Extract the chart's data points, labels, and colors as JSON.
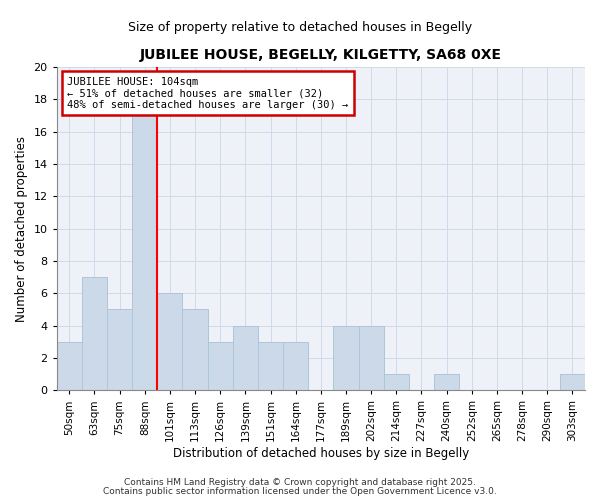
{
  "title": "JUBILEE HOUSE, BEGELLY, KILGETTY, SA68 0XE",
  "subtitle": "Size of property relative to detached houses in Begelly",
  "xlabel": "Distribution of detached houses by size in Begelly",
  "ylabel": "Number of detached properties",
  "categories": [
    "50sqm",
    "63sqm",
    "75sqm",
    "88sqm",
    "101sqm",
    "113sqm",
    "126sqm",
    "139sqm",
    "151sqm",
    "164sqm",
    "177sqm",
    "189sqm",
    "202sqm",
    "214sqm",
    "227sqm",
    "240sqm",
    "252sqm",
    "265sqm",
    "278sqm",
    "290sqm",
    "303sqm"
  ],
  "values": [
    3,
    7,
    5,
    17,
    6,
    5,
    3,
    4,
    3,
    3,
    0,
    4,
    4,
    1,
    0,
    1,
    0,
    0,
    0,
    0,
    1
  ],
  "bar_color": "#ccd9e8",
  "bar_edge_color": "#aec6d8",
  "red_line_index": 4,
  "annotation_line1": "JUBILEE HOUSE: 104sqm",
  "annotation_line2": "← 51% of detached houses are smaller (32)",
  "annotation_line3": "48% of semi-detached houses are larger (30) →",
  "annotation_box_color": "#ffffff",
  "annotation_box_edge": "#cc0000",
  "ylim": [
    0,
    20
  ],
  "yticks": [
    0,
    2,
    4,
    6,
    8,
    10,
    12,
    14,
    16,
    18,
    20
  ],
  "footer1": "Contains HM Land Registry data © Crown copyright and database right 2025.",
  "footer2": "Contains public sector information licensed under the Open Government Licence v3.0.",
  "grid_color": "#d0dae8",
  "background_color": "#eef2f8",
  "fig_background": "#ffffff"
}
